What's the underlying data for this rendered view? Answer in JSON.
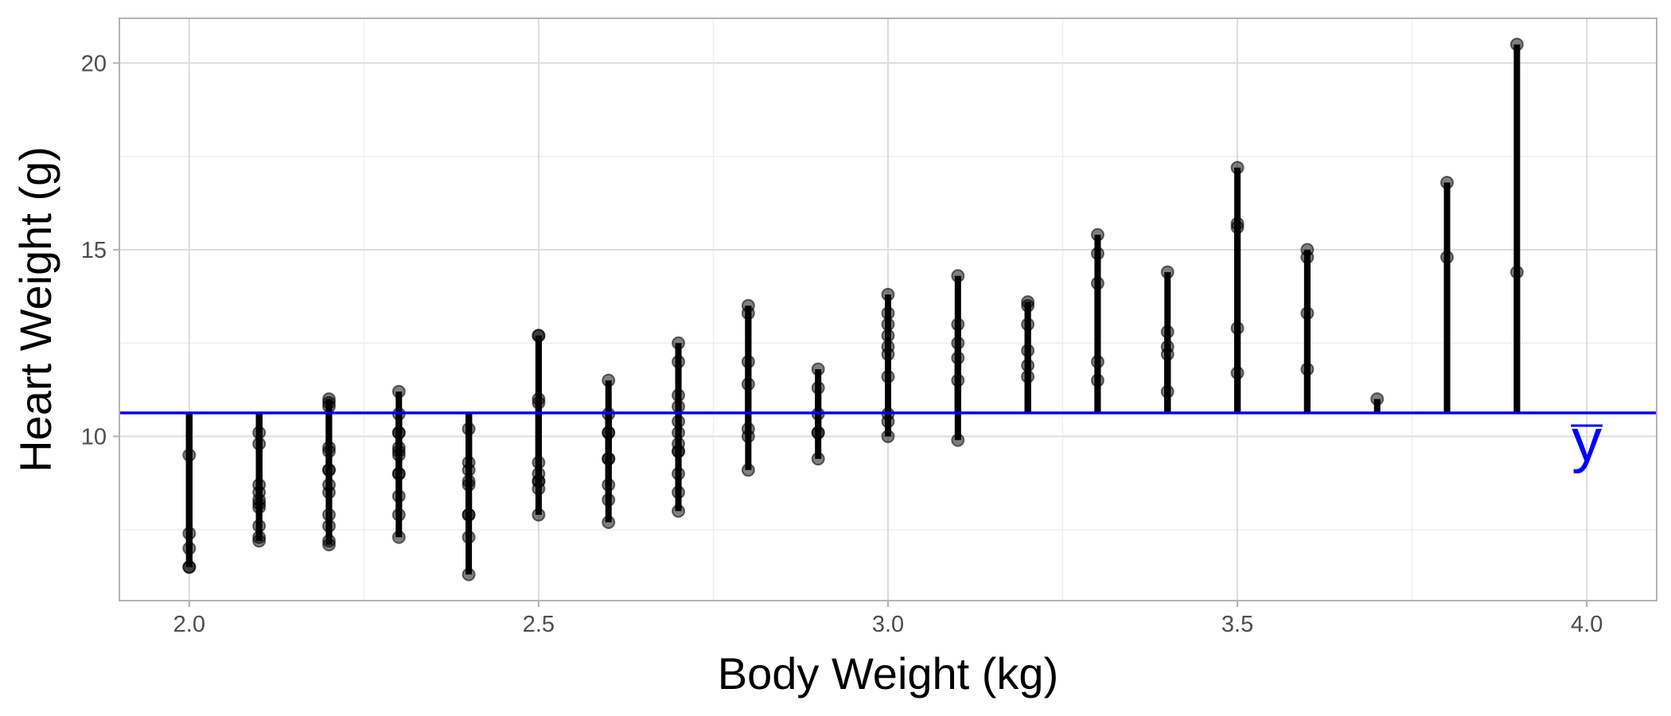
{
  "chart_data": {
    "type": "scatter",
    "title": "",
    "xlabel": "Body Weight (kg)",
    "ylabel": "Heart Weight (g)",
    "xlim": [
      1.9,
      4.1
    ],
    "ylim": [
      5.6,
      21.2
    ],
    "x_ticks": [
      2.0,
      2.5,
      3.0,
      3.5,
      4.0
    ],
    "x_tick_labels": [
      "2.0",
      "2.5",
      "3.0",
      "3.5",
      "4.0"
    ],
    "y_ticks": [
      10,
      15,
      20
    ],
    "y_tick_labels": [
      "10",
      "15",
      "20"
    ],
    "grid": true,
    "legend": "none",
    "mean_line": {
      "value": 10.63,
      "label": "y",
      "color": "#0000ff"
    },
    "point_color": "#000000",
    "segment_color": "#000000",
    "points": [
      {
        "x": 2.0,
        "y": 6.5
      },
      {
        "x": 2.0,
        "y": 6.5
      },
      {
        "x": 2.0,
        "y": 7.0
      },
      {
        "x": 2.0,
        "y": 7.4
      },
      {
        "x": 2.0,
        "y": 9.5
      },
      {
        "x": 2.1,
        "y": 7.2
      },
      {
        "x": 2.1,
        "y": 7.3
      },
      {
        "x": 2.1,
        "y": 7.6
      },
      {
        "x": 2.1,
        "y": 8.1
      },
      {
        "x": 2.1,
        "y": 8.2
      },
      {
        "x": 2.1,
        "y": 8.3
      },
      {
        "x": 2.1,
        "y": 8.5
      },
      {
        "x": 2.1,
        "y": 8.7
      },
      {
        "x": 2.1,
        "y": 9.8
      },
      {
        "x": 2.1,
        "y": 10.1
      },
      {
        "x": 2.2,
        "y": 7.1
      },
      {
        "x": 2.2,
        "y": 7.2
      },
      {
        "x": 2.2,
        "y": 7.6
      },
      {
        "x": 2.2,
        "y": 7.9
      },
      {
        "x": 2.2,
        "y": 8.5
      },
      {
        "x": 2.2,
        "y": 8.7
      },
      {
        "x": 2.2,
        "y": 9.1
      },
      {
        "x": 2.2,
        "y": 9.1
      },
      {
        "x": 2.2,
        "y": 9.6
      },
      {
        "x": 2.2,
        "y": 9.7
      },
      {
        "x": 2.2,
        "y": 10.8
      },
      {
        "x": 2.2,
        "y": 10.9
      },
      {
        "x": 2.2,
        "y": 11.0
      },
      {
        "x": 2.3,
        "y": 7.3
      },
      {
        "x": 2.3,
        "y": 7.9
      },
      {
        "x": 2.3,
        "y": 8.4
      },
      {
        "x": 2.3,
        "y": 9.0
      },
      {
        "x": 2.3,
        "y": 9.0
      },
      {
        "x": 2.3,
        "y": 9.5
      },
      {
        "x": 2.3,
        "y": 9.6
      },
      {
        "x": 2.3,
        "y": 9.7
      },
      {
        "x": 2.3,
        "y": 10.1
      },
      {
        "x": 2.3,
        "y": 10.1
      },
      {
        "x": 2.3,
        "y": 10.6
      },
      {
        "x": 2.3,
        "y": 11.2
      },
      {
        "x": 2.4,
        "y": 6.3
      },
      {
        "x": 2.4,
        "y": 7.3
      },
      {
        "x": 2.4,
        "y": 7.9
      },
      {
        "x": 2.4,
        "y": 7.9
      },
      {
        "x": 2.4,
        "y": 8.7
      },
      {
        "x": 2.4,
        "y": 8.8
      },
      {
        "x": 2.4,
        "y": 9.1
      },
      {
        "x": 2.4,
        "y": 9.3
      },
      {
        "x": 2.4,
        "y": 10.2
      },
      {
        "x": 2.5,
        "y": 7.9
      },
      {
        "x": 2.5,
        "y": 8.6
      },
      {
        "x": 2.5,
        "y": 8.8
      },
      {
        "x": 2.5,
        "y": 8.8
      },
      {
        "x": 2.5,
        "y": 9.0
      },
      {
        "x": 2.5,
        "y": 9.3
      },
      {
        "x": 2.5,
        "y": 10.9
      },
      {
        "x": 2.5,
        "y": 11.0
      },
      {
        "x": 2.5,
        "y": 12.7
      },
      {
        "x": 2.5,
        "y": 12.7
      },
      {
        "x": 2.6,
        "y": 7.7
      },
      {
        "x": 2.6,
        "y": 8.3
      },
      {
        "x": 2.6,
        "y": 8.7
      },
      {
        "x": 2.6,
        "y": 9.4
      },
      {
        "x": 2.6,
        "y": 9.4
      },
      {
        "x": 2.6,
        "y": 10.1
      },
      {
        "x": 2.6,
        "y": 10.1
      },
      {
        "x": 2.6,
        "y": 10.6
      },
      {
        "x": 2.6,
        "y": 11.5
      },
      {
        "x": 2.7,
        "y": 8.0
      },
      {
        "x": 2.7,
        "y": 8.5
      },
      {
        "x": 2.7,
        "y": 9.0
      },
      {
        "x": 2.7,
        "y": 9.6
      },
      {
        "x": 2.7,
        "y": 9.6
      },
      {
        "x": 2.7,
        "y": 9.8
      },
      {
        "x": 2.7,
        "y": 10.1
      },
      {
        "x": 2.7,
        "y": 10.4
      },
      {
        "x": 2.7,
        "y": 10.8
      },
      {
        "x": 2.7,
        "y": 11.1
      },
      {
        "x": 2.7,
        "y": 12.0
      },
      {
        "x": 2.7,
        "y": 12.5
      },
      {
        "x": 2.8,
        "y": 9.1
      },
      {
        "x": 2.8,
        "y": 10.0
      },
      {
        "x": 2.8,
        "y": 10.2
      },
      {
        "x": 2.8,
        "y": 11.4
      },
      {
        "x": 2.8,
        "y": 12.0
      },
      {
        "x": 2.8,
        "y": 13.3
      },
      {
        "x": 2.8,
        "y": 13.5
      },
      {
        "x": 2.9,
        "y": 9.4
      },
      {
        "x": 2.9,
        "y": 10.1
      },
      {
        "x": 2.9,
        "y": 10.1
      },
      {
        "x": 2.9,
        "y": 10.6
      },
      {
        "x": 2.9,
        "y": 11.3
      },
      {
        "x": 2.9,
        "y": 11.8
      },
      {
        "x": 3.0,
        "y": 10.0
      },
      {
        "x": 3.0,
        "y": 10.4
      },
      {
        "x": 3.0,
        "y": 10.6
      },
      {
        "x": 3.0,
        "y": 11.6
      },
      {
        "x": 3.0,
        "y": 12.2
      },
      {
        "x": 3.0,
        "y": 12.4
      },
      {
        "x": 3.0,
        "y": 12.7
      },
      {
        "x": 3.0,
        "y": 13.0
      },
      {
        "x": 3.0,
        "y": 13.3
      },
      {
        "x": 3.0,
        "y": 13.8
      },
      {
        "x": 3.1,
        "y": 9.9
      },
      {
        "x": 3.1,
        "y": 11.5
      },
      {
        "x": 3.1,
        "y": 12.1
      },
      {
        "x": 3.1,
        "y": 12.5
      },
      {
        "x": 3.1,
        "y": 13.0
      },
      {
        "x": 3.1,
        "y": 14.3
      },
      {
        "x": 3.2,
        "y": 11.6
      },
      {
        "x": 3.2,
        "y": 11.9
      },
      {
        "x": 3.2,
        "y": 12.3
      },
      {
        "x": 3.2,
        "y": 13.0
      },
      {
        "x": 3.2,
        "y": 13.5
      },
      {
        "x": 3.2,
        "y": 13.6
      },
      {
        "x": 3.3,
        "y": 11.5
      },
      {
        "x": 3.3,
        "y": 12.0
      },
      {
        "x": 3.3,
        "y": 14.1
      },
      {
        "x": 3.3,
        "y": 14.9
      },
      {
        "x": 3.3,
        "y": 15.4
      },
      {
        "x": 3.4,
        "y": 11.2
      },
      {
        "x": 3.4,
        "y": 12.2
      },
      {
        "x": 3.4,
        "y": 12.4
      },
      {
        "x": 3.4,
        "y": 12.8
      },
      {
        "x": 3.4,
        "y": 14.4
      },
      {
        "x": 3.5,
        "y": 11.7
      },
      {
        "x": 3.5,
        "y": 12.9
      },
      {
        "x": 3.5,
        "y": 15.6
      },
      {
        "x": 3.5,
        "y": 15.7
      },
      {
        "x": 3.5,
        "y": 17.2
      },
      {
        "x": 3.6,
        "y": 11.8
      },
      {
        "x": 3.6,
        "y": 13.3
      },
      {
        "x": 3.6,
        "y": 14.8
      },
      {
        "x": 3.6,
        "y": 15.0
      },
      {
        "x": 3.7,
        "y": 11.0
      },
      {
        "x": 3.8,
        "y": 14.8
      },
      {
        "x": 3.8,
        "y": 16.8
      },
      {
        "x": 3.9,
        "y": 14.4
      },
      {
        "x": 3.9,
        "y": 20.5
      }
    ]
  }
}
